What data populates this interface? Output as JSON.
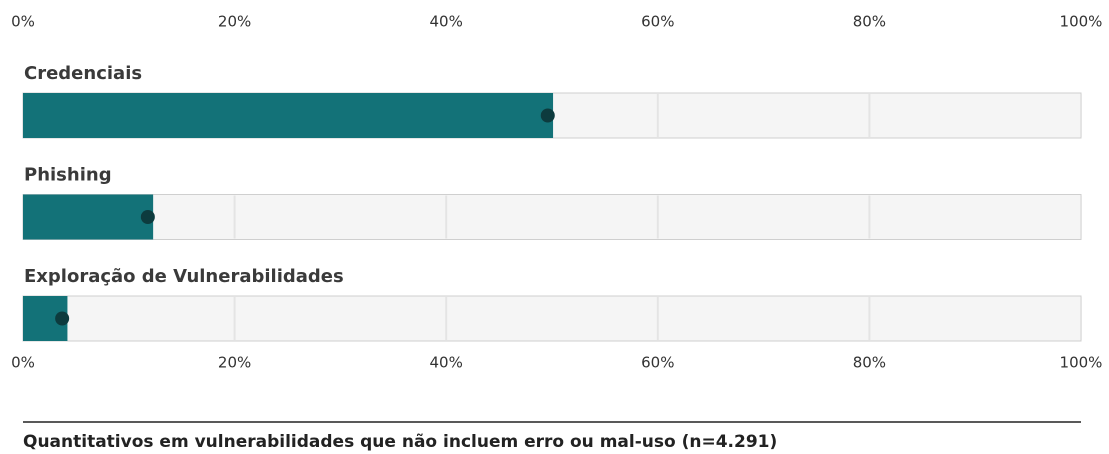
{
  "chart_data": {
    "type": "bar",
    "categories": [
      "Credenciais",
      "Phishing",
      "Exploração de Vulnerabilidades"
    ],
    "series": [
      {
        "color": "#137278",
        "values": [
          50.1,
          12.3,
          4.2
        ]
      },
      {
        "color": "#0d3b3e",
        "values": [
          49.6,
          11.8,
          3.7
        ]
      }
    ],
    "xlim": [
      0,
      100
    ],
    "xticks": [
      {
        "value": 0,
        "label": "0%"
      },
      {
        "value": 20,
        "label": "20%"
      },
      {
        "value": 40,
        "label": "40%"
      },
      {
        "value": 60,
        "label": "60%"
      },
      {
        "value": 80,
        "label": "80%"
      },
      {
        "value": 100,
        "label": "100%"
      }
    ],
    "grid": true,
    "note": "Quantitativos em vulnerabilidades que não incluem erro ou mal-uso (n=4.291)"
  }
}
